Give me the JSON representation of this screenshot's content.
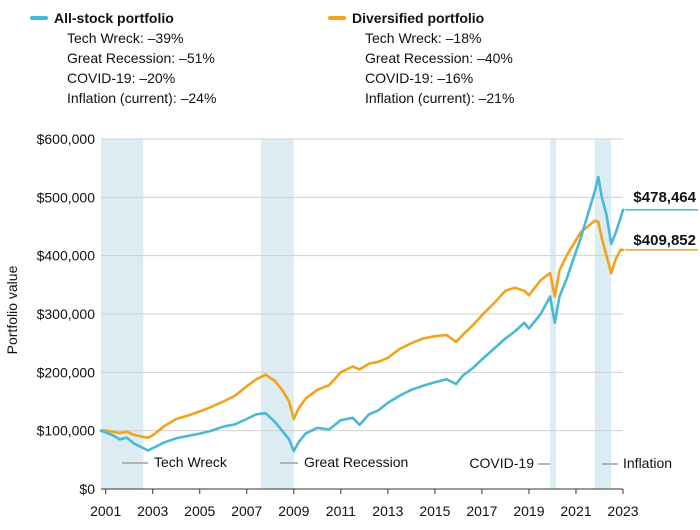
{
  "legend": {
    "stock": {
      "title": "All-stock portfolio",
      "color": "#4ab8d6",
      "rows": [
        "Tech Wreck: –39%",
        "Great Recession: –51%",
        "COVID-19: –20%",
        "Inflation (current): –24%"
      ]
    },
    "diversified": {
      "title": "Diversified portfolio",
      "color": "#f0a31b",
      "rows": [
        "Tech Wreck: –18%",
        "Great Recession: –40%",
        "COVID-19: –16%",
        "Inflation (current): –21%"
      ]
    }
  },
  "chart_data": {
    "type": "line",
    "xlabel": "",
    "ylabel": "Portfolio value",
    "xlim": [
      2000.8,
      2023.0
    ],
    "ylim": [
      0,
      600000
    ],
    "x_ticks": [
      2001,
      2003,
      2005,
      2007,
      2009,
      2011,
      2013,
      2015,
      2017,
      2019,
      2021,
      2023
    ],
    "y_ticks": [
      0,
      100000,
      200000,
      300000,
      400000,
      500000,
      600000
    ],
    "y_tick_labels": [
      "$0",
      "$100,000",
      "$200,000",
      "$300,000",
      "$400,000",
      "$500,000",
      "$600,000"
    ],
    "grid": "horizontal",
    "shaded_periods": [
      {
        "name": "Tech Wreck",
        "start": 2000.8,
        "end": 2002.6
      },
      {
        "name": "Great Recession",
        "start": 2007.6,
        "end": 2009.0
      },
      {
        "name": "COVID-19",
        "start": 2019.9,
        "end": 2020.15
      },
      {
        "name": "Inflation",
        "start": 2021.8,
        "end": 2022.5
      }
    ],
    "end_labels": {
      "stock": "$478,464",
      "diversified": "$409,852"
    },
    "series": [
      {
        "name": "All-stock portfolio",
        "color": "#4ab8d6",
        "x": [
          2000.8,
          2001.0,
          2001.3,
          2001.6,
          2001.9,
          2002.2,
          2002.5,
          2002.8,
          2003.0,
          2003.5,
          2004.0,
          2004.5,
          2005.0,
          2005.5,
          2006.0,
          2006.5,
          2007.0,
          2007.4,
          2007.8,
          2008.2,
          2008.5,
          2008.8,
          2009.0,
          2009.2,
          2009.5,
          2010.0,
          2010.5,
          2011.0,
          2011.5,
          2011.8,
          2012.2,
          2012.6,
          2013.0,
          2013.5,
          2014.0,
          2014.5,
          2015.0,
          2015.5,
          2015.9,
          2016.2,
          2016.6,
          2017.0,
          2017.5,
          2018.0,
          2018.4,
          2018.8,
          2019.0,
          2019.5,
          2019.9,
          2020.1,
          2020.3,
          2020.6,
          2020.9,
          2021.2,
          2021.5,
          2021.8,
          2021.95,
          2022.1,
          2022.3,
          2022.5,
          2022.7,
          2022.9,
          2023.0
        ],
        "values": [
          100000,
          97000,
          92000,
          85000,
          88000,
          78000,
          72000,
          66000,
          70000,
          80000,
          87000,
          91000,
          95000,
          100000,
          107000,
          111000,
          120000,
          128000,
          130000,
          115000,
          100000,
          85000,
          65000,
          80000,
          95000,
          105000,
          102000,
          118000,
          122000,
          110000,
          128000,
          135000,
          148000,
          160000,
          170000,
          177000,
          183000,
          188000,
          180000,
          195000,
          207000,
          222000,
          240000,
          258000,
          270000,
          285000,
          275000,
          300000,
          330000,
          285000,
          330000,
          360000,
          395000,
          430000,
          470000,
          510000,
          535000,
          500000,
          470000,
          420000,
          440000,
          465000,
          478464
        ]
      },
      {
        "name": "Diversified portfolio",
        "color": "#f0a31b",
        "x": [
          2000.8,
          2001.0,
          2001.3,
          2001.6,
          2001.9,
          2002.2,
          2002.5,
          2002.8,
          2003.0,
          2003.5,
          2004.0,
          2004.5,
          2005.0,
          2005.5,
          2006.0,
          2006.5,
          2007.0,
          2007.4,
          2007.8,
          2008.2,
          2008.5,
          2008.8,
          2009.0,
          2009.2,
          2009.5,
          2010.0,
          2010.5,
          2011.0,
          2011.5,
          2011.8,
          2012.2,
          2012.6,
          2013.0,
          2013.5,
          2014.0,
          2014.5,
          2015.0,
          2015.5,
          2015.9,
          2016.2,
          2016.6,
          2017.0,
          2017.5,
          2018.0,
          2018.4,
          2018.8,
          2019.0,
          2019.5,
          2019.9,
          2020.1,
          2020.3,
          2020.6,
          2020.9,
          2021.2,
          2021.5,
          2021.8,
          2021.95,
          2022.1,
          2022.3,
          2022.5,
          2022.7,
          2022.9,
          2023.0
        ],
        "values": [
          100000,
          100000,
          98000,
          96000,
          98000,
          93000,
          90000,
          88000,
          92000,
          108000,
          120000,
          126000,
          133000,
          141000,
          150000,
          160000,
          176000,
          188000,
          196000,
          185000,
          170000,
          150000,
          120000,
          138000,
          155000,
          170000,
          178000,
          200000,
          210000,
          205000,
          215000,
          218000,
          225000,
          240000,
          250000,
          258000,
          262000,
          264000,
          252000,
          265000,
          280000,
          298000,
          318000,
          340000,
          345000,
          340000,
          332000,
          358000,
          370000,
          330000,
          375000,
          400000,
          420000,
          440000,
          450000,
          460000,
          458000,
          430000,
          400000,
          370000,
          395000,
          410000,
          409852
        ]
      }
    ]
  }
}
